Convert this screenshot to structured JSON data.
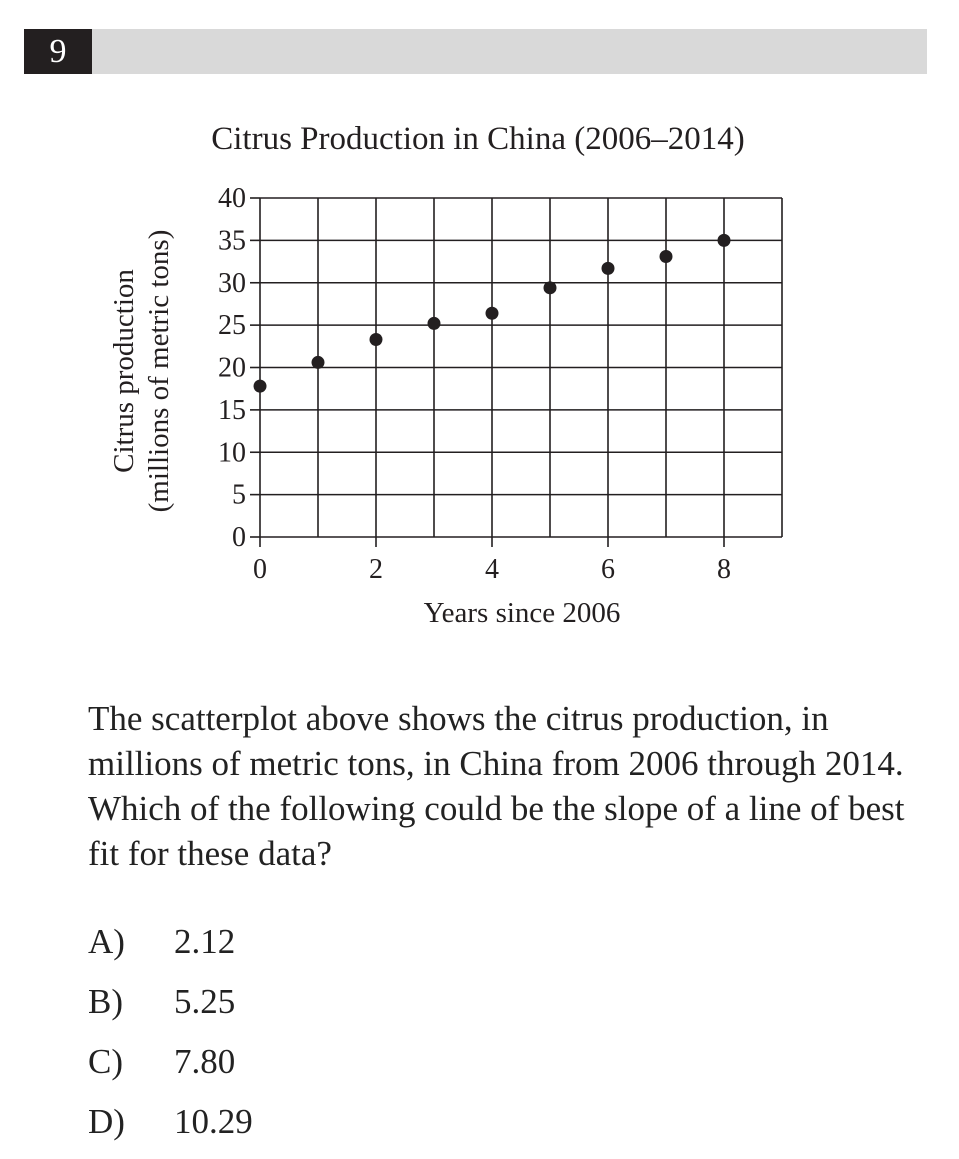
{
  "question": {
    "number": "9",
    "text": "The scatterplot above shows the citrus production, in millions of metric tons, in China from 2006 through 2014. Which of the following could be the slope of a line of best fit for these data?",
    "choices": [
      {
        "letter": "A)",
        "value": "2.12"
      },
      {
        "letter": "B)",
        "value": "5.25"
      },
      {
        "letter": "C)",
        "value": "7.80"
      },
      {
        "letter": "D)",
        "value": "10.29"
      }
    ]
  },
  "chart_data": {
    "type": "scatter",
    "title": "Citrus Production in China (2006–2014)",
    "xlabel": "Years since 2006",
    "ylabel_line1": "Citrus production",
    "ylabel_line2": "(millions of metric tons)",
    "xlim": [
      0,
      9
    ],
    "ylim": [
      0,
      40
    ],
    "x_ticks": [
      0,
      2,
      4,
      6,
      8
    ],
    "y_ticks": [
      0,
      5,
      10,
      15,
      20,
      25,
      30,
      35,
      40
    ],
    "grid": true,
    "x": [
      0,
      1,
      2,
      3,
      4,
      5,
      6,
      7,
      8
    ],
    "y": [
      17.8,
      20.6,
      23.3,
      25.2,
      26.4,
      29.4,
      31.7,
      33.1,
      35.0
    ],
    "point_color": "#231f20"
  }
}
